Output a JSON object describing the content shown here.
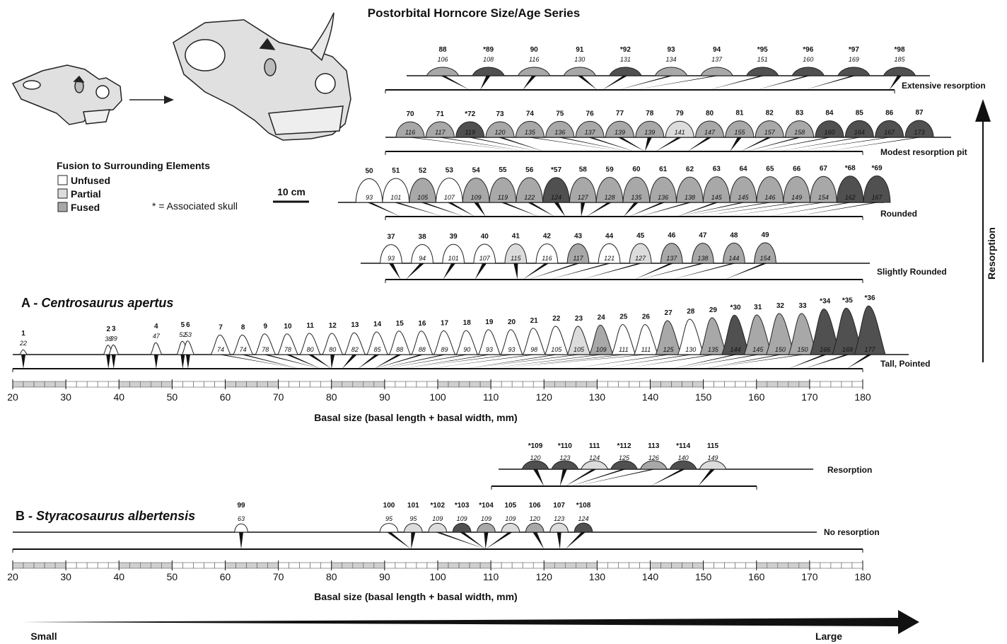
{
  "title": "Postorbital Horncore Size/Age Series",
  "legend": {
    "title": "Fusion to Surrounding Elements",
    "items": [
      {
        "label": "Unfused",
        "color": "#ffffff"
      },
      {
        "label": "Partial",
        "color": "#dcdcdc"
      },
      {
        "label": "Fused",
        "color": "#a8a8a8"
      }
    ],
    "note": "* = Associated skull"
  },
  "scale_bar": "10 cm",
  "resorption_label": "Resorption",
  "size_arrow": {
    "small": "Small",
    "large": "Large"
  },
  "panels": [
    {
      "label": "A -",
      "species": "Centrosaurus apertus",
      "xlim": [
        20,
        180
      ],
      "xticks": [
        20,
        30,
        40,
        50,
        60,
        70,
        80,
        90,
        100,
        110,
        120,
        130,
        140,
        150,
        160,
        170,
        180
      ],
      "xlabel": "Basal size (basal length + basal width, mm)",
      "rows": [
        {
          "stage": "Extensive resorption",
          "specimens": [
            {
              "id": "88",
              "size": 106,
              "color": "#a8a8a8"
            },
            {
              "id": "*89",
              "size": 108,
              "color": "#505050"
            },
            {
              "id": "90",
              "size": 116,
              "color": "#a8a8a8"
            },
            {
              "id": "91",
              "size": 130,
              "color": "#a8a8a8"
            },
            {
              "id": "*92",
              "size": 131,
              "color": "#505050"
            },
            {
              "id": "93",
              "size": 134,
              "color": "#a8a8a8"
            },
            {
              "id": "94",
              "size": 137,
              "color": "#a8a8a8"
            },
            {
              "id": "*95",
              "size": 151,
              "color": "#505050"
            },
            {
              "id": "*96",
              "size": 160,
              "color": "#505050"
            },
            {
              "id": "*97",
              "size": 169,
              "color": "#505050"
            },
            {
              "id": "*98",
              "size": 185,
              "color": "#505050"
            }
          ]
        },
        {
          "stage": "Modest resorption pit",
          "specimens": [
            {
              "id": "70",
              "size": 116,
              "color": "#a8a8a8"
            },
            {
              "id": "71",
              "size": 117,
              "color": "#a8a8a8"
            },
            {
              "id": "*72",
              "size": 119,
              "color": "#505050"
            },
            {
              "id": "73",
              "size": 120,
              "color": "#a8a8a8"
            },
            {
              "id": "74",
              "size": 135,
              "color": "#a8a8a8"
            },
            {
              "id": "75",
              "size": 136,
              "color": "#a8a8a8"
            },
            {
              "id": "76",
              "size": 137,
              "color": "#a8a8a8"
            },
            {
              "id": "77",
              "size": 139,
              "color": "#a8a8a8"
            },
            {
              "id": "78",
              "size": 139,
              "color": "#a8a8a8"
            },
            {
              "id": "79",
              "size": 141,
              "color": "#dcdcdc"
            },
            {
              "id": "80",
              "size": 147,
              "color": "#a8a8a8"
            },
            {
              "id": "81",
              "size": 155,
              "color": "#a8a8a8"
            },
            {
              "id": "82",
              "size": 157,
              "color": "#a8a8a8"
            },
            {
              "id": "83",
              "size": 158,
              "color": "#a8a8a8"
            },
            {
              "id": "84",
              "size": 160,
              "color": "#505050"
            },
            {
              "id": "85",
              "size": 164,
              "color": "#505050"
            },
            {
              "id": "86",
              "size": 167,
              "color": "#505050"
            },
            {
              "id": "87",
              "size": 173,
              "color": "#505050"
            }
          ]
        },
        {
          "stage": "Rounded",
          "specimens": [
            {
              "id": "50",
              "size": 93,
              "color": "#ffffff"
            },
            {
              "id": "51",
              "size": 101,
              "color": "#ffffff"
            },
            {
              "id": "52",
              "size": 105,
              "color": "#a8a8a8"
            },
            {
              "id": "53",
              "size": 107,
              "color": "#ffffff"
            },
            {
              "id": "54",
              "size": 109,
              "color": "#a8a8a8"
            },
            {
              "id": "55",
              "size": 119,
              "color": "#a8a8a8"
            },
            {
              "id": "56",
              "size": 122,
              "color": "#a8a8a8"
            },
            {
              "id": "*57",
              "size": 124,
              "color": "#505050"
            },
            {
              "id": "58",
              "size": 127,
              "color": "#a8a8a8"
            },
            {
              "id": "59",
              "size": 128,
              "color": "#a8a8a8"
            },
            {
              "id": "60",
              "size": 135,
              "color": "#a8a8a8"
            },
            {
              "id": "61",
              "size": 136,
              "color": "#a8a8a8"
            },
            {
              "id": "62",
              "size": 138,
              "color": "#a8a8a8"
            },
            {
              "id": "63",
              "size": 145,
              "color": "#a8a8a8"
            },
            {
              "id": "64",
              "size": 145,
              "color": "#a8a8a8"
            },
            {
              "id": "65",
              "size": 146,
              "color": "#a8a8a8"
            },
            {
              "id": "66",
              "size": 149,
              "color": "#a8a8a8"
            },
            {
              "id": "67",
              "size": 154,
              "color": "#a8a8a8"
            },
            {
              "id": "*68",
              "size": 162,
              "color": "#505050"
            },
            {
              "id": "*69",
              "size": 167,
              "color": "#505050"
            }
          ]
        },
        {
          "stage": "Slightly Rounded",
          "specimens": [
            {
              "id": "37",
              "size": 93,
              "color": "#ffffff"
            },
            {
              "id": "38",
              "size": 94,
              "color": "#ffffff"
            },
            {
              "id": "39",
              "size": 101,
              "color": "#ffffff"
            },
            {
              "id": "40",
              "size": 107,
              "color": "#ffffff"
            },
            {
              "id": "41",
              "size": 115,
              "color": "#dcdcdc"
            },
            {
              "id": "42",
              "size": 116,
              "color": "#ffffff"
            },
            {
              "id": "43",
              "size": 117,
              "color": "#a8a8a8"
            },
            {
              "id": "44",
              "size": 121,
              "color": "#ffffff"
            },
            {
              "id": "45",
              "size": 127,
              "color": "#dcdcdc"
            },
            {
              "id": "46",
              "size": 137,
              "color": "#a8a8a8"
            },
            {
              "id": "47",
              "size": 138,
              "color": "#a8a8a8"
            },
            {
              "id": "48",
              "size": 144,
              "color": "#a8a8a8"
            },
            {
              "id": "49",
              "size": 154,
              "color": "#a8a8a8"
            }
          ]
        },
        {
          "stage": "Tall, Pointed",
          "specimens": [
            {
              "id": "1",
              "size": 22,
              "color": "#ffffff"
            },
            {
              "id": "2",
              "size": 38,
              "color": "#ffffff"
            },
            {
              "id": "3",
              "size": 39,
              "color": "#ffffff"
            },
            {
              "id": "4",
              "size": 47,
              "color": "#ffffff"
            },
            {
              "id": "5",
              "size": 52,
              "color": "#ffffff"
            },
            {
              "id": "6",
              "size": 53,
              "color": "#ffffff"
            },
            {
              "id": "7",
              "size": 74,
              "color": "#ffffff"
            },
            {
              "id": "8",
              "size": 74,
              "color": "#ffffff"
            },
            {
              "id": "9",
              "size": 78,
              "color": "#ffffff"
            },
            {
              "id": "10",
              "size": 78,
              "color": "#ffffff"
            },
            {
              "id": "11",
              "size": 80,
              "color": "#ffffff"
            },
            {
              "id": "12",
              "size": 80,
              "color": "#ffffff"
            },
            {
              "id": "13",
              "size": 82,
              "color": "#ffffff"
            },
            {
              "id": "14",
              "size": 85,
              "color": "#ffffff"
            },
            {
              "id": "15",
              "size": 88,
              "color": "#ffffff"
            },
            {
              "id": "16",
              "size": 88,
              "color": "#ffffff"
            },
            {
              "id": "17",
              "size": 89,
              "color": "#ffffff"
            },
            {
              "id": "18",
              "size": 90,
              "color": "#ffffff"
            },
            {
              "id": "19",
              "size": 93,
              "color": "#ffffff"
            },
            {
              "id": "20",
              "size": 93,
              "color": "#ffffff"
            },
            {
              "id": "21",
              "size": 98,
              "color": "#ffffff"
            },
            {
              "id": "22",
              "size": 105,
              "color": "#ffffff"
            },
            {
              "id": "23",
              "size": 105,
              "color": "#dcdcdc"
            },
            {
              "id": "24",
              "size": 109,
              "color": "#a8a8a8"
            },
            {
              "id": "25",
              "size": 111,
              "color": "#ffffff"
            },
            {
              "id": "26",
              "size": 111,
              "color": "#ffffff"
            },
            {
              "id": "27",
              "size": 125,
              "color": "#a8a8a8"
            },
            {
              "id": "28",
              "size": 130,
              "color": "#ffffff"
            },
            {
              "id": "29",
              "size": 135,
              "color": "#a8a8a8"
            },
            {
              "id": "*30",
              "size": 144,
              "color": "#505050"
            },
            {
              "id": "31",
              "size": 145,
              "color": "#a8a8a8"
            },
            {
              "id": "32",
              "size": 150,
              "color": "#a8a8a8"
            },
            {
              "id": "33",
              "size": 150,
              "color": "#a8a8a8"
            },
            {
              "id": "*34",
              "size": 166,
              "color": "#505050"
            },
            {
              "id": "*35",
              "size": 169,
              "color": "#505050"
            },
            {
              "id": "*36",
              "size": 177,
              "color": "#505050"
            }
          ]
        }
      ]
    },
    {
      "label": "B -",
      "species": "Styracosaurus albertensis",
      "xlim": [
        20,
        180
      ],
      "xticks": [
        20,
        30,
        40,
        50,
        60,
        70,
        80,
        90,
        100,
        110,
        120,
        130,
        140,
        150,
        160,
        170,
        180
      ],
      "xlabel": "Basal size (basal length + basal width, mm)",
      "rows": [
        {
          "stage": "Resorption",
          "specimens": [
            {
              "id": "*109",
              "size": 120,
              "color": "#505050"
            },
            {
              "id": "*110",
              "size": 123,
              "color": "#505050"
            },
            {
              "id": "111",
              "size": 124,
              "color": "#dcdcdc"
            },
            {
              "id": "*112",
              "size": 125,
              "color": "#505050"
            },
            {
              "id": "113",
              "size": 126,
              "color": "#a8a8a8"
            },
            {
              "id": "*114",
              "size": 140,
              "color": "#505050"
            },
            {
              "id": "115",
              "size": 149,
              "color": "#dcdcdc"
            }
          ]
        },
        {
          "stage": "No resorption",
          "specimens": [
            {
              "id": "99",
              "size": 63,
              "color": "#ffffff"
            },
            {
              "id": "100",
              "size": 95,
              "color": "#ffffff"
            },
            {
              "id": "101",
              "size": 95,
              "color": "#dcdcdc"
            },
            {
              "id": "*102",
              "size": 109,
              "color": "#dcdcdc"
            },
            {
              "id": "*103",
              "size": 109,
              "color": "#505050"
            },
            {
              "id": "*104",
              "size": 109,
              "color": "#a8a8a8"
            },
            {
              "id": "105",
              "size": 109,
              "color": "#dcdcdc"
            },
            {
              "id": "106",
              "size": 120,
              "color": "#a8a8a8"
            },
            {
              "id": "107",
              "size": 123,
              "color": "#dcdcdc"
            },
            {
              "id": "*108",
              "size": 124,
              "color": "#505050"
            }
          ]
        }
      ]
    }
  ]
}
